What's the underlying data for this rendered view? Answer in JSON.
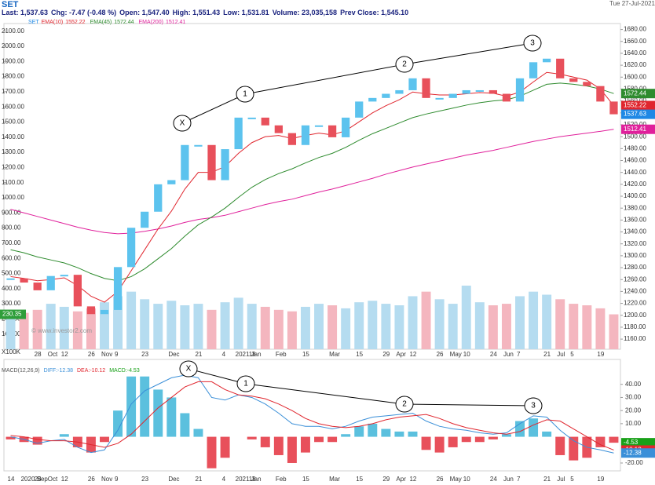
{
  "chart_data": [
    {
      "type": "candlestick",
      "title": "SET",
      "header": [
        "Last: 1,537.63",
        "Chg: -7.47 (-0.48 %)",
        "Open: 1,547.40",
        "High: 1,551.43",
        "Low: 1,531.81",
        "Volume: 23,035,158",
        "Prev Close: 1,545.10"
      ],
      "date": "Tue 27-Jul-2021",
      "categories": [
        null,
        null,
        "28",
        "Oct",
        "12",
        null,
        "26",
        "Nov",
        "9",
        null,
        "23",
        null,
        "Dec",
        null,
        "21",
        null,
        "4",
        "2021 Jan",
        "18",
        null,
        "Feb",
        null,
        "15",
        null,
        "Mar",
        null,
        "15",
        null,
        "29",
        "Apr",
        "12",
        null,
        "26",
        "May",
        "10",
        null,
        "24",
        "Jun",
        "7",
        null,
        "21",
        "Jul",
        "5",
        null,
        "19",
        null
      ],
      "up_color": "#5cc3ee",
      "down_color": "#e8505b",
      "series": [
        {
          "name": "SET",
          "color": "#1e88e5",
          "values": [
            1262,
            1255,
            1242,
            1266,
            1268,
            1215,
            1202,
            1209,
            1281,
            1347,
            1374,
            1420,
            1427,
            1486,
            1486,
            1427,
            1479,
            1532,
            1532,
            1519,
            1506,
            1486,
            1519,
            1519,
            1499,
            1532,
            1559,
            1565,
            1572,
            1578,
            1598,
            1565,
            1565,
            1572,
            1578,
            1578,
            1572,
            1559,
            1598,
            1625,
            1631,
            1598,
            1592,
            1585,
            1559,
            1537.63
          ]
        },
        {
          "name": "EMA(10)",
          "color": "#e0262e",
          "values": [
            1265,
            1262,
            1258,
            1260,
            1263,
            1250,
            1232,
            1222,
            1240,
            1275,
            1310,
            1345,
            1375,
            1412,
            1440,
            1440,
            1450,
            1472,
            1490,
            1500,
            1502,
            1497,
            1502,
            1506,
            1503,
            1510,
            1525,
            1540,
            1552,
            1562,
            1575,
            1572,
            1570,
            1570,
            1572,
            1574,
            1573,
            1568,
            1575,
            1592,
            1608,
            1605,
            1600,
            1595,
            1580,
            1552.22
          ]
        },
        {
          "name": "EMA(45)",
          "color": "#2e8b2e",
          "values": [
            1310,
            1305,
            1298,
            1293,
            1288,
            1280,
            1270,
            1262,
            1258,
            1265,
            1278,
            1295,
            1312,
            1333,
            1352,
            1365,
            1380,
            1398,
            1415,
            1428,
            1438,
            1446,
            1456,
            1465,
            1472,
            1482,
            1494,
            1505,
            1514,
            1523,
            1532,
            1538,
            1543,
            1548,
            1553,
            1557,
            1560,
            1562,
            1568,
            1578,
            1588,
            1590,
            1588,
            1585,
            1580,
            1572.44
          ]
        },
        {
          "name": "EMA(200)",
          "color": "#e0209b",
          "values": [
            1378,
            1372,
            1366,
            1360,
            1354,
            1348,
            1343,
            1339,
            1337,
            1338,
            1341,
            1345,
            1350,
            1356,
            1361,
            1364,
            1368,
            1374,
            1380,
            1386,
            1391,
            1395,
            1401,
            1407,
            1412,
            1418,
            1424,
            1430,
            1437,
            1443,
            1449,
            1454,
            1459,
            1464,
            1469,
            1473,
            1477,
            1482,
            1487,
            1492,
            1496,
            1500,
            1503,
            1506,
            1509,
            1512.41
          ]
        },
        {
          "axis": "y2",
          "color": "#2e9e3a",
          "up_color": "#b5dcf0",
          "down_color": "#f4b6bf",
          "values": [
            220,
            240,
            260,
            300,
            280,
            250,
            270,
            310,
            350,
            380,
            330,
            300,
            320,
            290,
            300,
            260,
            310,
            340,
            300,
            280,
            260,
            250,
            280,
            300,
            290,
            270,
            310,
            320,
            300,
            290,
            350,
            380,
            330,
            300,
            420,
            310,
            290,
            300,
            350,
            380,
            360,
            330,
            300,
            290,
            270,
            230.35
          ]
        }
      ],
      "ylim": [
        1143,
        1690
      ],
      "yticks": [
        {
          "value": 1160,
          "label": "1160.00"
        },
        {
          "value": 1180,
          "label": "1180.00"
        },
        {
          "value": 1200,
          "label": "1200.00"
        },
        {
          "value": 1220,
          "label": "1220.00"
        },
        {
          "value": 1240,
          "label": "1240.00"
        },
        {
          "value": 1260,
          "label": "1260.00"
        },
        {
          "value": 1280,
          "label": "1280.00"
        },
        {
          "value": 1300,
          "label": "1300.00"
        },
        {
          "value": 1320,
          "label": "1320.00"
        },
        {
          "value": 1340,
          "label": "1340.00"
        },
        {
          "value": 1360,
          "label": "1360.00"
        },
        {
          "value": 1380,
          "label": "1380.00"
        },
        {
          "value": 1400,
          "label": "1400.00"
        },
        {
          "value": 1420,
          "label": "1420.00"
        },
        {
          "value": 1440,
          "label": "1440.00"
        },
        {
          "value": 1460,
          "label": "1460.00"
        },
        {
          "value": 1480,
          "label": "1480.00"
        },
        {
          "value": 1500,
          "label": "1500.00"
        },
        {
          "value": 1520,
          "label": "1520.00"
        },
        {
          "value": 1540,
          "label": "1540.00"
        },
        {
          "value": 1560,
          "label": "1560.00"
        },
        {
          "value": 1580,
          "label": "1580.00"
        },
        {
          "value": 1600,
          "label": "1600.00"
        },
        {
          "value": 1620,
          "label": "1620.00"
        },
        {
          "value": 1640,
          "label": "1640.00"
        },
        {
          "value": 1660,
          "label": "1660.00"
        },
        {
          "value": 1680,
          "label": "1680.00"
        }
      ],
      "y2lim": [
        0,
        2150
      ],
      "y2ticks": [
        {
          "value": 100,
          "label": "100.00"
        },
        {
          "value": 200,
          "label": "200.00"
        },
        {
          "value": 300,
          "label": "300.00"
        },
        {
          "value": 400,
          "label": "400.00"
        },
        {
          "value": 500,
          "label": "500.00"
        },
        {
          "value": 600,
          "label": "600.00"
        },
        {
          "value": 700,
          "label": "700.00"
        },
        {
          "value": 800,
          "label": "800.00"
        },
        {
          "value": 900,
          "label": "900.00"
        },
        {
          "value": 1000,
          "label": "1000.00"
        },
        {
          "value": 1100,
          "label": "1100.00"
        },
        {
          "value": 1200,
          "label": "1200.00"
        },
        {
          "value": 1300,
          "label": "1300.00"
        },
        {
          "value": 1400,
          "label": "1400.00"
        },
        {
          "value": 1500,
          "label": "1500.00"
        },
        {
          "value": 1600,
          "label": "1600.00"
        },
        {
          "value": 1700,
          "label": "1700.00"
        },
        {
          "value": 1800,
          "label": "1800.00"
        },
        {
          "value": 1900,
          "label": "1900.00"
        },
        {
          "value": 2000,
          "label": "2000.00"
        },
        {
          "value": 2100,
          "label": "2100.00"
        }
      ],
      "y2_unit": "X100K",
      "watermark": "© www.investor2.com",
      "annotations": [
        "X",
        "1",
        "2",
        "3"
      ]
    },
    {
      "type": "macd",
      "title": "MACD(12,26,9)",
      "categories": [
        "14",
        "2020 Sep",
        "28",
        "Oct",
        "12",
        null,
        "26",
        "Nov",
        "9",
        null,
        "23",
        null,
        "Dec",
        null,
        "21",
        null,
        "4",
        "2021 Jan",
        "18",
        null,
        "Feb",
        null,
        "15",
        null,
        "Mar",
        null,
        "15",
        null,
        "29",
        "Apr",
        "12",
        null,
        "26",
        "May",
        "10",
        null,
        "24",
        "Jun",
        "7",
        null,
        "21",
        "Jul",
        "5",
        null,
        "19",
        null
      ],
      "series": [
        {
          "name": "DIFF:",
          "color": "#3a8fd8",
          "values": [
            0,
            -2,
            -5,
            -3,
            -2,
            -8,
            -12,
            -10,
            5,
            25,
            35,
            40,
            45,
            47,
            45,
            30,
            28,
            32,
            30,
            25,
            18,
            10,
            8,
            8,
            6,
            8,
            12,
            15,
            16,
            17,
            18,
            12,
            8,
            6,
            5,
            3,
            2,
            3,
            10,
            16,
            15,
            5,
            -3,
            -8,
            -10,
            -12.38
          ]
        },
        {
          "name": "DEA:",
          "color": "#e0262e",
          "values": [
            1,
            0,
            -2,
            -3,
            -3,
            -4,
            -6,
            -8,
            -5,
            2,
            12,
            22,
            30,
            38,
            42,
            42,
            36,
            32,
            31,
            29,
            25,
            20,
            14,
            10,
            8,
            7,
            8,
            10,
            13,
            15,
            16,
            17,
            14,
            10,
            7,
            5,
            3,
            2,
            4,
            9,
            13,
            12,
            6,
            0,
            -6,
            -10.12
          ]
        },
        {
          "name": "MACD:",
          "color": "#18a018",
          "up_color": "#5bc0de",
          "down_color": "#e8505b",
          "values": [
            -2,
            -4,
            -6,
            0,
            2,
            -8,
            -12,
            -4,
            20,
            46,
            46,
            36,
            30,
            18,
            6,
            -24,
            -16,
            0,
            -2,
            -8,
            -14,
            -20,
            -12,
            -4,
            -4,
            2,
            8,
            10,
            6,
            4,
            4,
            -10,
            -12,
            -8,
            -4,
            -4,
            -2,
            2,
            12,
            14,
            4,
            -14,
            -18,
            -16,
            -8,
            -4.53
          ]
        }
      ],
      "ylim": [
        -26,
        59
      ],
      "yticks": [
        {
          "value": 40,
          "label": "40.00"
        },
        {
          "value": 30,
          "label": "30.00"
        },
        {
          "value": 20,
          "label": "20.00"
        },
        {
          "value": 10,
          "label": "10.00"
        },
        {
          "value": -20,
          "label": "-20.00"
        }
      ],
      "annotations": [
        "X",
        "1",
        "2",
        "3"
      ]
    }
  ]
}
